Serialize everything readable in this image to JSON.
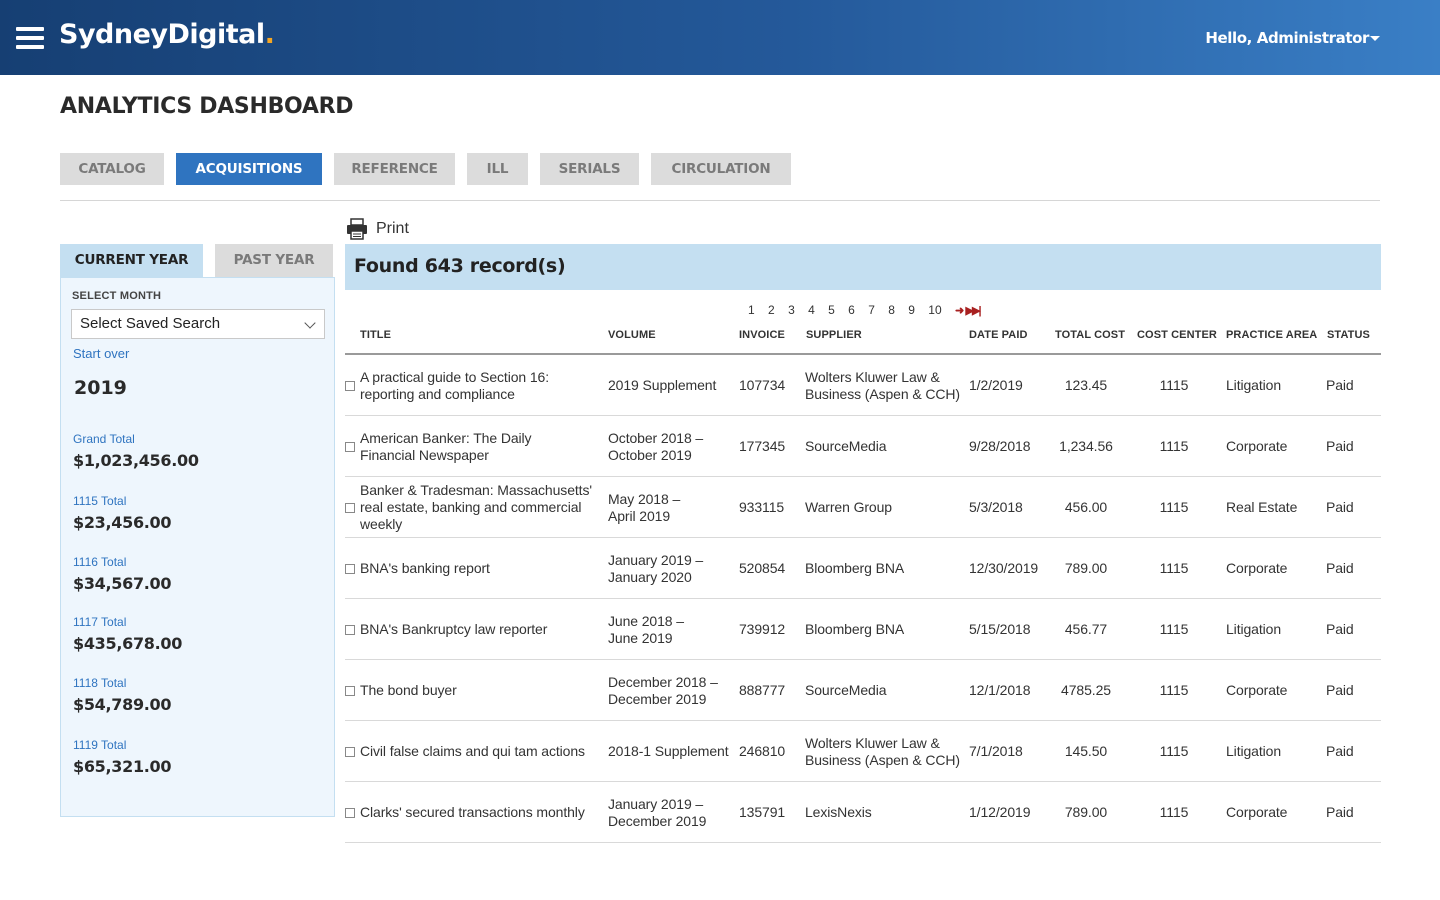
{
  "header": {
    "logo_main": "SydneyDigital",
    "logo_dot": ".",
    "user_greeting": "Hello, Administrator"
  },
  "page_title": "ANALYTICS DASHBOARD",
  "module_tabs": [
    {
      "label": "CATALOG",
      "active": false
    },
    {
      "label": "ACQUISITIONS",
      "active": true
    },
    {
      "label": "REFERENCE",
      "active": false
    },
    {
      "label": "ILL",
      "active": false
    },
    {
      "label": "SERIALS",
      "active": false
    },
    {
      "label": "CIRCULATION",
      "active": false
    }
  ],
  "sidebar": {
    "tabs": [
      {
        "label": "CURRENT YEAR",
        "active": true
      },
      {
        "label": "PAST YEAR",
        "active": false
      }
    ],
    "select_label": "SELECT MONTH",
    "select_value": "Select Saved Search",
    "start_over": "Start over",
    "year": "2019",
    "totals": [
      {
        "label": "Grand Total",
        "value": "$1,023,456.00"
      },
      {
        "label": "1115 Total",
        "value": "$23,456.00"
      },
      {
        "label": "1116 Total",
        "value": "$34,567.00"
      },
      {
        "label": "1117 Total",
        "value": "$435,678.00"
      },
      {
        "label": "1118 Total",
        "value": "$54,789.00"
      },
      {
        "label": "1119 Total",
        "value": "$65,321.00"
      }
    ]
  },
  "main": {
    "print_label": "Print",
    "found_text": "Found 643 record(s)",
    "pagination": [
      "1",
      "2",
      "3",
      "4",
      "5",
      "6",
      "7",
      "8",
      "9",
      "10"
    ],
    "columns": [
      "TITLE",
      "VOLUME",
      "INVOICE",
      "SUPPLIER",
      "DATE PAID",
      "TOTAL COST",
      "COST CENTER",
      "PRACTICE AREA",
      "STATUS"
    ],
    "rows": [
      {
        "title": [
          "A practical guide to Section 16:",
          "reporting and compliance"
        ],
        "volume": [
          "2019 Supplement"
        ],
        "invoice": "107734",
        "supplier": [
          "Wolters Kluwer Law &",
          "Business (Aspen & CCH)"
        ],
        "date_paid": "1/2/2019",
        "total_cost": "123.45",
        "cost_center": "1115",
        "practice_area": "Litigation",
        "status": "Paid"
      },
      {
        "title": [
          "American Banker: The Daily",
          "Financial Newspaper"
        ],
        "volume": [
          "October 2018 –",
          "October 2019"
        ],
        "invoice": "177345",
        "supplier": [
          "SourceMedia"
        ],
        "date_paid": "9/28/2018",
        "total_cost": "1,234.56",
        "cost_center": "1115",
        "practice_area": "Corporate",
        "status": "Paid"
      },
      {
        "title": [
          "Banker & Tradesman: Massachusetts'",
          "real estate, banking and commercial",
          "weekly"
        ],
        "volume": [
          "May 2018 –",
          "April 2019"
        ],
        "invoice": "933115",
        "supplier": [
          "Warren Group"
        ],
        "date_paid": "5/3/2018",
        "total_cost": "456.00",
        "cost_center": "1115",
        "practice_area": "Real Estate",
        "status": "Paid"
      },
      {
        "title": [
          "BNA's banking report"
        ],
        "volume": [
          "January 2019 –",
          "January 2020"
        ],
        "invoice": "520854",
        "supplier": [
          "Bloomberg BNA"
        ],
        "date_paid": "12/30/2019",
        "total_cost": "789.00",
        "cost_center": "1115",
        "practice_area": "Corporate",
        "status": "Paid"
      },
      {
        "title": [
          "BNA's Bankruptcy law reporter"
        ],
        "volume": [
          "June 2018 –",
          "June 2019"
        ],
        "invoice": "739912",
        "supplier": [
          "Bloomberg BNA"
        ],
        "date_paid": "5/15/2018",
        "total_cost": "456.77",
        "cost_center": "1115",
        "practice_area": "Litigation",
        "status": "Paid"
      },
      {
        "title": [
          "The bond buyer"
        ],
        "volume": [
          "December 2018 –",
          "December 2019"
        ],
        "invoice": "888777",
        "supplier": [
          "SourceMedia"
        ],
        "date_paid": "12/1/2018",
        "total_cost": "4785.25",
        "cost_center": "1115",
        "practice_area": "Corporate",
        "status": "Paid"
      },
      {
        "title": [
          "Civil false claims and qui tam actions"
        ],
        "volume": [
          "2018-1 Supplement"
        ],
        "invoice": "246810",
        "supplier": [
          "Wolters Kluwer Law &",
          "Business (Aspen & CCH)"
        ],
        "date_paid": "7/1/2018",
        "total_cost": "145.50",
        "cost_center": "1115",
        "practice_area": "Litigation",
        "status": "Paid"
      },
      {
        "title": [
          "Clarks' secured transactions monthly"
        ],
        "volume": [
          "January 2019 –",
          "December 2019"
        ],
        "invoice": "135791",
        "supplier": [
          "LexisNexis"
        ],
        "date_paid": "1/12/2019",
        "total_cost": "789.00",
        "cost_center": "1115",
        "practice_area": "Corporate",
        "status": "Paid"
      }
    ]
  },
  "colors": {
    "header_start": "#163f73",
    "header_end": "#3a7fc6",
    "accent": "#2f74c0",
    "highlight": "#c4dff1",
    "logo_dot": "#f5a623"
  },
  "icons": [
    "menu-icon",
    "caret-down-icon",
    "chevron-down-icon",
    "printer-icon",
    "next-page-icon",
    "last-page-icon"
  ]
}
